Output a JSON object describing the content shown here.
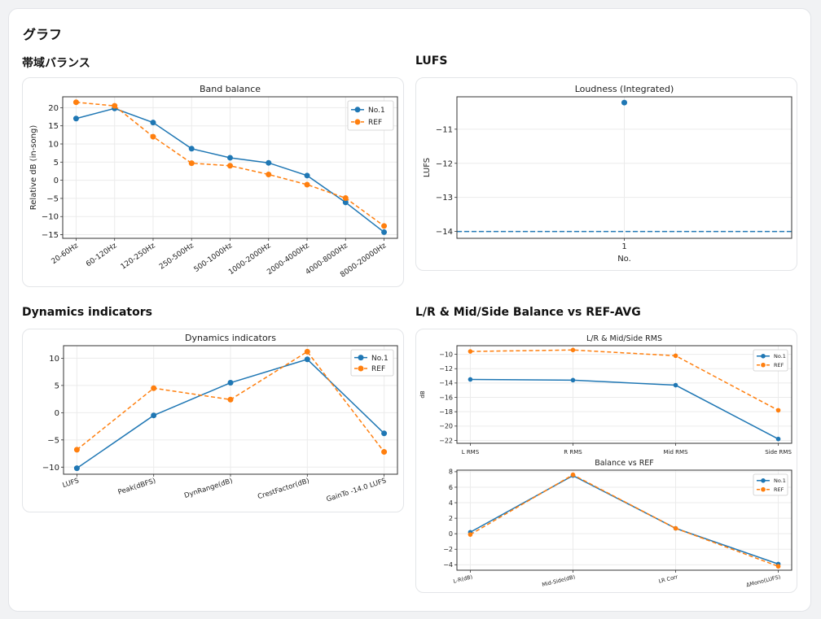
{
  "page": {
    "title": "グラフ",
    "sections": {
      "band": "帯域バランス",
      "lufs": "LUFS",
      "dynamics": "Dynamics indicators",
      "lrms": "L/R & Mid/Side Balance vs REF-AVG"
    }
  },
  "colors": {
    "series1": "#1f77b4",
    "series2": "#ff7f0e"
  },
  "chart_data": [
    {
      "id": "band",
      "type": "line",
      "title": "Band balance",
      "xlabel": "",
      "ylabel": "Relative dB (in-song)",
      "categories": [
        "20-60Hz",
        "60-120Hz",
        "120-250Hz",
        "250-500Hz",
        "500-1000Hz",
        "1000-2000Hz",
        "2000-4000Hz",
        "4000-8000Hz",
        "8000-20000Hz"
      ],
      "ylim": [
        -16,
        23
      ],
      "yticks": [
        -15,
        -10,
        -5,
        0,
        5,
        10,
        15,
        20
      ],
      "series": [
        {
          "name": "No.1",
          "values": [
            17.0,
            19.8,
            15.9,
            8.7,
            6.2,
            4.8,
            1.3,
            -6.1,
            -14.3
          ]
        },
        {
          "name": "REF",
          "values": [
            21.5,
            20.5,
            12.0,
            4.7,
            4.0,
            1.6,
            -1.2,
            -4.9,
            -12.6
          ]
        }
      ],
      "legend": "top-right",
      "grid": true
    },
    {
      "id": "lufs",
      "type": "scatter",
      "title": "Loudness (Integrated)",
      "xlabel": "No.",
      "ylabel": "LUFS",
      "categories": [
        "1"
      ],
      "ylim": [
        -14.2,
        -10.05
      ],
      "yticks": [
        -14,
        -13,
        -12,
        -11
      ],
      "series": [
        {
          "name": "No.1",
          "values": [
            -10.22
          ]
        }
      ],
      "reference_line": {
        "value": -14.0,
        "style": "dashed"
      },
      "grid": true
    },
    {
      "id": "dynamics",
      "type": "line",
      "title": "Dynamics indicators",
      "xlabel": "",
      "ylabel": "",
      "categories": [
        "LUFS",
        "Peak(dBFS)",
        "DynRange(dB)",
        "CrestFactor(dB)",
        "GainTo -14.0 LUFS"
      ],
      "ylim": [
        -11.3,
        12.3
      ],
      "yticks": [
        -10,
        -5,
        0,
        5,
        10
      ],
      "series": [
        {
          "name": "No.1",
          "values": [
            -10.2,
            -0.5,
            5.5,
            9.8,
            -3.8
          ]
        },
        {
          "name": "REF",
          "values": [
            -6.8,
            4.5,
            2.4,
            11.2,
            -7.2
          ]
        }
      ],
      "legend": "top-right",
      "grid": true
    },
    {
      "id": "rms",
      "type": "line",
      "title": "L/R & Mid/Side RMS",
      "xlabel": "",
      "ylabel": "dB",
      "categories": [
        "L RMS",
        "R RMS",
        "Mid RMS",
        "Side RMS"
      ],
      "ylim": [
        -22.4,
        -8.8
      ],
      "yticks": [
        -22,
        -20,
        -18,
        -16,
        -14,
        -12,
        -10
      ],
      "series": [
        {
          "name": "No.1",
          "values": [
            -13.5,
            -13.6,
            -14.3,
            -21.8
          ]
        },
        {
          "name": "REF",
          "values": [
            -9.6,
            -9.4,
            -10.2,
            -17.8
          ]
        }
      ],
      "legend": "top-right",
      "grid": true
    },
    {
      "id": "balance",
      "type": "line",
      "title": "Balance vs REF",
      "xlabel": "",
      "ylabel": "",
      "categories": [
        "L-R(dB)",
        "Mid-Side(dB)",
        "LR Corr",
        "ΔMono(LUFS)"
      ],
      "ylim": [
        -4.7,
        8.2
      ],
      "yticks": [
        -4,
        -2,
        0,
        2,
        4,
        6,
        8
      ],
      "series": [
        {
          "name": "No.1",
          "values": [
            0.2,
            7.5,
            0.7,
            -3.9
          ]
        },
        {
          "name": "REF",
          "values": [
            -0.1,
            7.6,
            0.7,
            -4.2
          ]
        }
      ],
      "legend": "top-right",
      "grid": true
    }
  ]
}
